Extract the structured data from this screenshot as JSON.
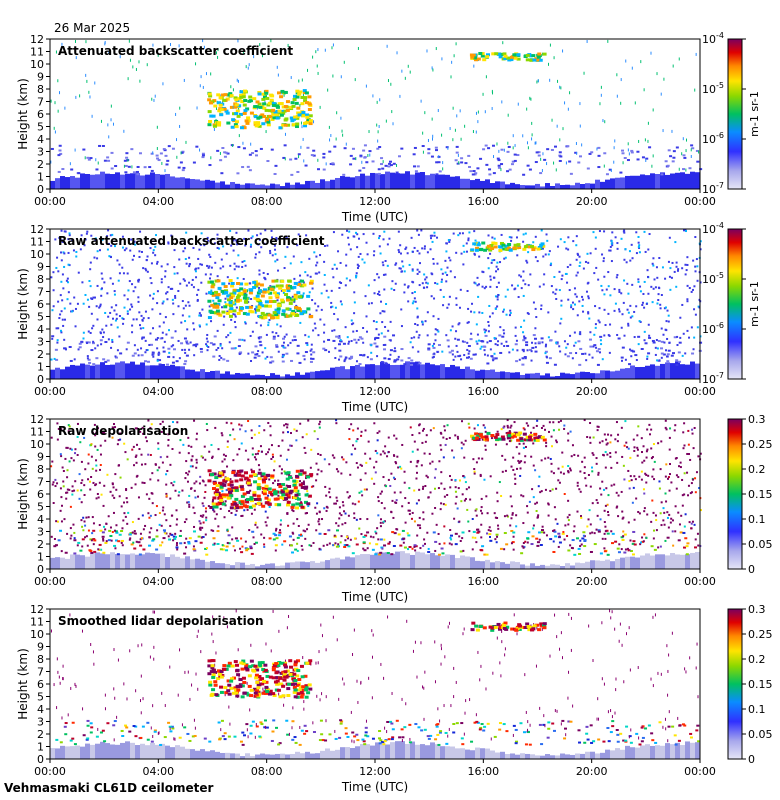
{
  "header": {
    "date": "26 Mar 2025"
  },
  "footer": {
    "instrument": "Vehmasmaki CL61D ceilometer"
  },
  "chart_data": [
    {
      "type": "heatmap",
      "title": "Attenuated backscatter coefficient",
      "xlabel": "Time (UTC)",
      "ylabel": "Height (km)",
      "x_ticks": [
        "00:00",
        "04:00",
        "08:00",
        "12:00",
        "16:00",
        "20:00",
        "00:00"
      ],
      "y_ticks": [
        0,
        1,
        2,
        3,
        4,
        5,
        6,
        7,
        8,
        9,
        10,
        11,
        12
      ],
      "xlim_hours": [
        0,
        24
      ],
      "ylim_km": [
        0,
        12
      ],
      "colorbar": {
        "scale": "log",
        "range": [
          1e-07,
          0.0001
        ],
        "ticks": [
          "10-7",
          "10-6",
          "10-5",
          "10-4"
        ],
        "unit": "m-1 sr-1"
      },
      "features": [
        {
          "type": "boundary_layer",
          "top_km": 1.5
        },
        {
          "type": "aerosol_layer",
          "top_km": 3.5
        },
        {
          "type": "cloud",
          "t_start_h": 5.8,
          "t_end_h": 9.6,
          "base_km": 5.0,
          "top_km": 8.0
        },
        {
          "type": "cloud",
          "t_start_h": 15.5,
          "t_end_h": 18.2,
          "base_km": 10.4,
          "top_km": 11.0
        }
      ]
    },
    {
      "type": "heatmap",
      "title": "Raw attenuated backscatter coefficient",
      "xlabel": "Time (UTC)",
      "ylabel": "Height (km)",
      "x_ticks": [
        "00:00",
        "04:00",
        "08:00",
        "12:00",
        "16:00",
        "20:00",
        "00:00"
      ],
      "y_ticks": [
        0,
        1,
        2,
        3,
        4,
        5,
        6,
        7,
        8,
        9,
        10,
        11,
        12
      ],
      "xlim_hours": [
        0,
        24
      ],
      "ylim_km": [
        0,
        12
      ],
      "colorbar": {
        "scale": "log",
        "range": [
          1e-07,
          0.0001
        ],
        "ticks": [
          "10-7",
          "10-6",
          "10-5",
          "10-4"
        ],
        "unit": "m-1 sr-1"
      }
    },
    {
      "type": "heatmap",
      "title": "Raw depolarisation",
      "xlabel": "Time (UTC)",
      "ylabel": "Height (km)",
      "x_ticks": [
        "00:00",
        "04:00",
        "08:00",
        "12:00",
        "16:00",
        "20:00",
        "00:00"
      ],
      "y_ticks": [
        0,
        1,
        2,
        3,
        4,
        5,
        6,
        7,
        8,
        9,
        10,
        11,
        12
      ],
      "xlim_hours": [
        0,
        24
      ],
      "ylim_km": [
        0,
        12
      ],
      "colorbar": {
        "scale": "linear",
        "range": [
          0,
          0.3
        ],
        "ticks": [
          "0",
          "0.05",
          "0.1",
          "0.15",
          "0.2",
          "0.25",
          "0.3"
        ]
      }
    },
    {
      "type": "heatmap",
      "title": "Smoothed lidar depolarisation",
      "xlabel": "Time (UTC)",
      "ylabel": "Height (km)",
      "x_ticks": [
        "00:00",
        "04:00",
        "08:00",
        "12:00",
        "16:00",
        "20:00",
        "00:00"
      ],
      "y_ticks": [
        0,
        1,
        2,
        3,
        4,
        5,
        6,
        7,
        8,
        9,
        10,
        11,
        12
      ],
      "xlim_hours": [
        0,
        24
      ],
      "ylim_km": [
        0,
        12
      ],
      "colorbar": {
        "scale": "linear",
        "range": [
          0,
          0.3
        ],
        "ticks": [
          "0",
          "0.05",
          "0.1",
          "0.15",
          "0.2",
          "0.25",
          "0.3"
        ]
      }
    }
  ]
}
